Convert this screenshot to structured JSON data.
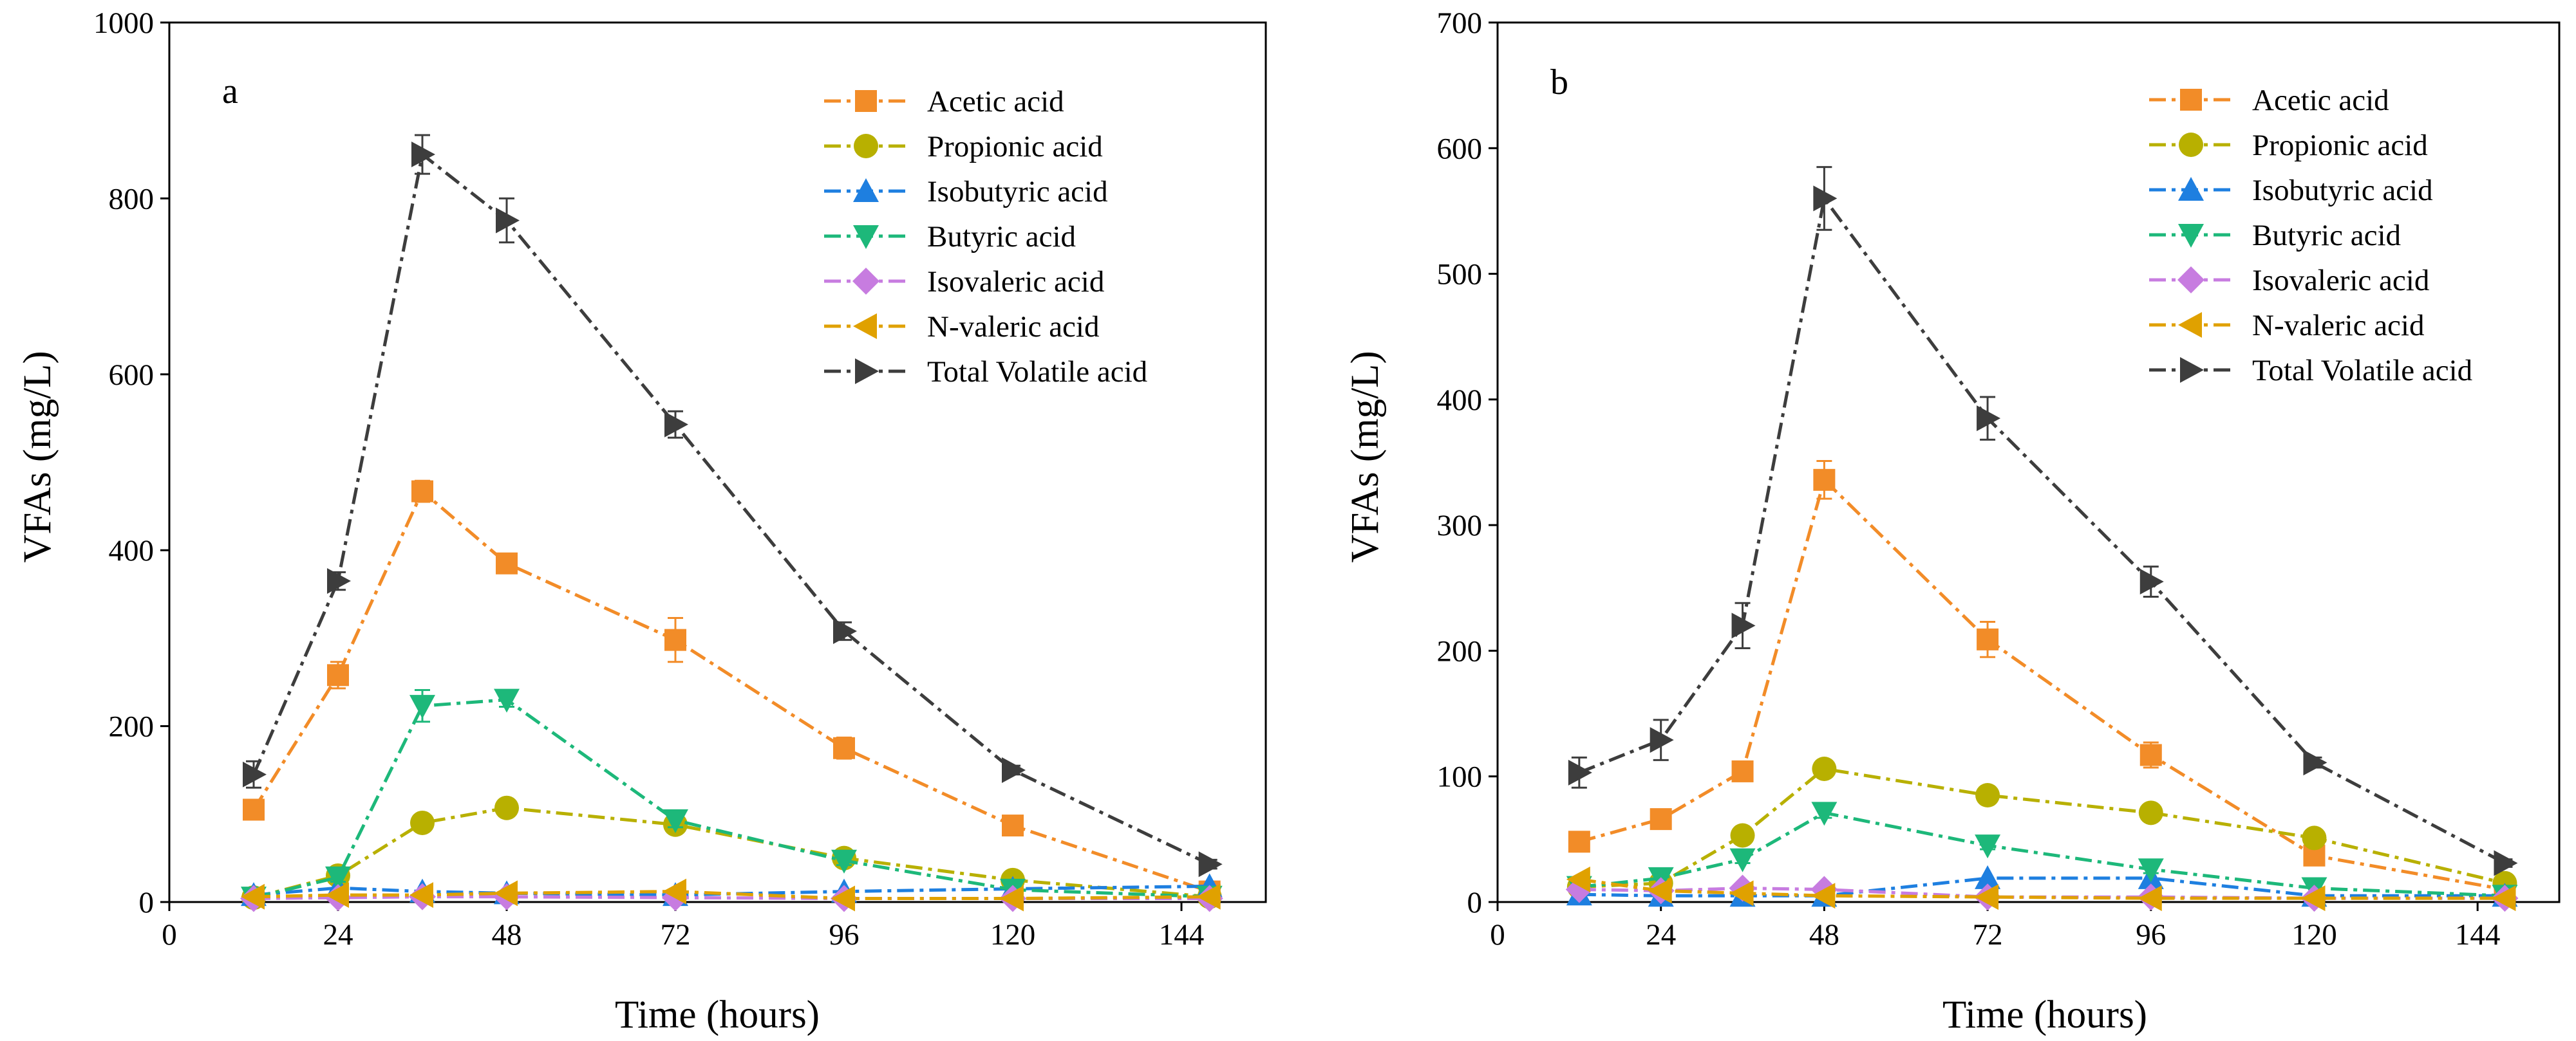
{
  "chart_data": [
    {
      "panel_label": "a",
      "type": "line",
      "xlabel": "Time (hours)",
      "ylabel": "VFAs (mg/L)",
      "xlim": [
        0,
        156
      ],
      "ylim": [
        0,
        1000
      ],
      "xticks": [
        0,
        24,
        48,
        72,
        96,
        120,
        144
      ],
      "yticks": [
        0,
        200,
        400,
        600,
        800,
        1000
      ],
      "legend_position": "top-right",
      "x": [
        12,
        24,
        36,
        48,
        72,
        96,
        120,
        148
      ],
      "series": [
        {
          "name": "Acetic acid",
          "color": "#F28C28",
          "marker": "square",
          "values": [
            105,
            258,
            467,
            385,
            298,
            175,
            87,
            12
          ],
          "errors": [
            8,
            15,
            12,
            8,
            25,
            12,
            8,
            3
          ]
        },
        {
          "name": "Propionic acid",
          "color": "#B8B000",
          "marker": "circle",
          "values": [
            5,
            30,
            90,
            107,
            88,
            50,
            25,
            6
          ],
          "errors": [
            2,
            4,
            8,
            8,
            6,
            5,
            3,
            2
          ]
        },
        {
          "name": "Isobutyric acid",
          "color": "#1E7FE0",
          "marker": "triangle-up",
          "values": [
            8,
            16,
            12,
            10,
            8,
            12,
            15,
            18
          ],
          "errors": [
            2,
            2,
            2,
            2,
            2,
            2,
            2,
            2
          ]
        },
        {
          "name": "Butyric acid",
          "color": "#1DB87A",
          "marker": "triangle-down",
          "values": [
            5,
            28,
            223,
            230,
            93,
            47,
            14,
            6
          ],
          "errors": [
            2,
            5,
            18,
            8,
            8,
            5,
            3,
            2
          ]
        },
        {
          "name": "Isovaleric acid",
          "color": "#C77CE0",
          "marker": "diamond",
          "values": [
            4,
            5,
            6,
            6,
            5,
            4,
            4,
            4
          ],
          "errors": [
            1,
            1,
            1,
            1,
            1,
            1,
            1,
            1
          ]
        },
        {
          "name": "N-valeric acid",
          "color": "#E0A100",
          "marker": "triangle-left",
          "values": [
            6,
            8,
            8,
            10,
            12,
            4,
            4,
            6
          ],
          "errors": [
            1,
            1,
            1,
            1,
            2,
            1,
            1,
            1
          ]
        },
        {
          "name": "Total Volatile acid",
          "color": "#3D3D3D",
          "marker": "triangle-right",
          "values": [
            145,
            365,
            850,
            775,
            543,
            308,
            150,
            43
          ],
          "errors": [
            15,
            10,
            22,
            25,
            15,
            10,
            5,
            5
          ]
        }
      ]
    },
    {
      "panel_label": "b",
      "type": "line",
      "xlabel": "Time (hours)",
      "ylabel": "VFAs (mg/L)",
      "xlim": [
        0,
        156
      ],
      "ylim": [
        0,
        700
      ],
      "xticks": [
        0,
        24,
        48,
        72,
        96,
        120,
        144
      ],
      "yticks": [
        0,
        100,
        200,
        300,
        400,
        500,
        600,
        700
      ],
      "legend_position": "top-right",
      "x": [
        12,
        24,
        36,
        48,
        72,
        96,
        120,
        148
      ],
      "series": [
        {
          "name": "Acetic acid",
          "color": "#F28C28",
          "marker": "square",
          "values": [
            48,
            66,
            104,
            336,
            209,
            117,
            37,
            10
          ],
          "errors": [
            4,
            5,
            5,
            15,
            14,
            10,
            5,
            2
          ]
        },
        {
          "name": "Propionic acid",
          "color": "#B8B000",
          "marker": "circle",
          "values": [
            12,
            15,
            53,
            106,
            85,
            71,
            51,
            15
          ],
          "errors": [
            2,
            2,
            5,
            5,
            5,
            4,
            4,
            2
          ]
        },
        {
          "name": "Isobutyric acid",
          "color": "#1E7FE0",
          "marker": "triangle-up",
          "values": [
            6,
            5,
            5,
            5,
            19,
            19,
            5,
            5
          ],
          "errors": [
            1,
            1,
            1,
            1,
            2,
            2,
            1,
            1
          ]
        },
        {
          "name": "Butyric acid",
          "color": "#1DB87A",
          "marker": "triangle-down",
          "values": [
            12,
            19,
            34,
            71,
            45,
            26,
            11,
            5
          ],
          "errors": [
            2,
            2,
            3,
            4,
            3,
            3,
            2,
            1
          ]
        },
        {
          "name": "Isovaleric acid",
          "color": "#C77CE0",
          "marker": "diamond",
          "values": [
            10,
            9,
            11,
            10,
            4,
            4,
            3,
            3
          ],
          "errors": [
            1,
            1,
            1,
            1,
            1,
            1,
            1,
            1
          ]
        },
        {
          "name": "N-valeric acid",
          "color": "#E0A100",
          "marker": "triangle-left",
          "values": [
            18,
            9,
            7,
            5,
            4,
            3,
            3,
            3
          ],
          "errors": [
            2,
            1,
            1,
            1,
            1,
            1,
            1,
            1
          ]
        },
        {
          "name": "Total Volatile acid",
          "color": "#3D3D3D",
          "marker": "triangle-right",
          "values": [
            103,
            129,
            220,
            560,
            385,
            255,
            111,
            31
          ],
          "errors": [
            12,
            16,
            18,
            25,
            17,
            12,
            4,
            3
          ]
        }
      ]
    }
  ]
}
